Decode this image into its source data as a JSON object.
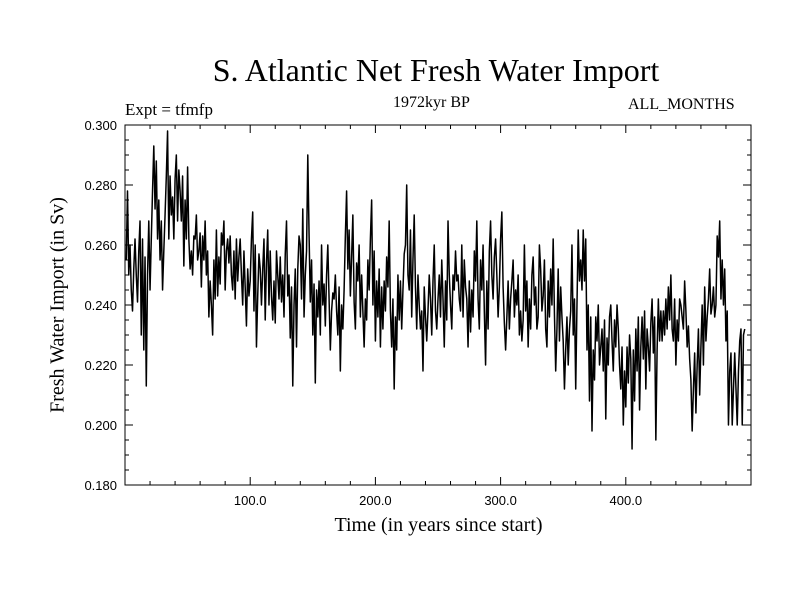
{
  "chart_data": {
    "type": "line",
    "title": "S. Atlantic Net Fresh Water Import",
    "subtitle": "1972kyr BP",
    "experiment": "Expt = tfmfp",
    "season": "ALL_MONTHS",
    "xlabel": "Time (in years since start)",
    "ylabel": "Fresh Water Import (in Sv)",
    "xlim": [
      0,
      500
    ],
    "ylim": [
      0.18,
      0.3
    ],
    "xticks": [
      100,
      200,
      300,
      400
    ],
    "xtick_labels": [
      "100.0",
      "200.0",
      "300.0",
      "400.0"
    ],
    "yticks": [
      0.18,
      0.2,
      0.22,
      0.24,
      0.26,
      0.28,
      0.3
    ],
    "ytick_labels": [
      "0.180",
      "0.200",
      "0.220",
      "0.240",
      "0.260",
      "0.280",
      "0.300"
    ],
    "series": [
      {
        "name": "S. Atlantic Net Fresh Water Import",
        "x_start": 1,
        "x_step": 1,
        "values": [
          0.255,
          0.278,
          0.25,
          0.26,
          0.245,
          0.238,
          0.252,
          0.262,
          0.25,
          0.241,
          0.258,
          0.268,
          0.23,
          0.262,
          0.225,
          0.256,
          0.213,
          0.25,
          0.268,
          0.245,
          0.262,
          0.278,
          0.293,
          0.272,
          0.288,
          0.262,
          0.275,
          0.255,
          0.268,
          0.245,
          0.258,
          0.27,
          0.283,
          0.298,
          0.262,
          0.283,
          0.27,
          0.276,
          0.262,
          0.282,
          0.29,
          0.268,
          0.285,
          0.278,
          0.268,
          0.283,
          0.253,
          0.275,
          0.262,
          0.286,
          0.262,
          0.252,
          0.258,
          0.25,
          0.263,
          0.262,
          0.27,
          0.255,
          0.258,
          0.264,
          0.246,
          0.263,
          0.255,
          0.268,
          0.25,
          0.258,
          0.236,
          0.248,
          0.24,
          0.23,
          0.255,
          0.242,
          0.265,
          0.243,
          0.256,
          0.247,
          0.264,
          0.26,
          0.268,
          0.245,
          0.258,
          0.262,
          0.254,
          0.263,
          0.25,
          0.245,
          0.258,
          0.242,
          0.262,
          0.248,
          0.256,
          0.262,
          0.25,
          0.24,
          0.258,
          0.246,
          0.233,
          0.252,
          0.243,
          0.248,
          0.262,
          0.271,
          0.238,
          0.26,
          0.226,
          0.243,
          0.257,
          0.252,
          0.24,
          0.252,
          0.262,
          0.235,
          0.254,
          0.265,
          0.24,
          0.258,
          0.243,
          0.235,
          0.248,
          0.234,
          0.258,
          0.25,
          0.242,
          0.256,
          0.241,
          0.25,
          0.236,
          0.257,
          0.268,
          0.243,
          0.25,
          0.229,
          0.246,
          0.213,
          0.24,
          0.252,
          0.226,
          0.252,
          0.263,
          0.26,
          0.242,
          0.272,
          0.236,
          0.25,
          0.258,
          0.29,
          0.264,
          0.241,
          0.255,
          0.23,
          0.247,
          0.214,
          0.245,
          0.236,
          0.248,
          0.23,
          0.26,
          0.24,
          0.247,
          0.233,
          0.25,
          0.26,
          0.242,
          0.225,
          0.238,
          0.244,
          0.242,
          0.25,
          0.238,
          0.23,
          0.246,
          0.218,
          0.24,
          0.232,
          0.245,
          0.263,
          0.278,
          0.252,
          0.265,
          0.243,
          0.256,
          0.27,
          0.241,
          0.232,
          0.254,
          0.248,
          0.26,
          0.236,
          0.25,
          0.238,
          0.226,
          0.242,
          0.235,
          0.255,
          0.245,
          0.262,
          0.275,
          0.24,
          0.258,
          0.228,
          0.248,
          0.236,
          0.252,
          0.226,
          0.246,
          0.232,
          0.248,
          0.238,
          0.256,
          0.246,
          0.268,
          0.238,
          0.226,
          0.242,
          0.212,
          0.236,
          0.225,
          0.25,
          0.235,
          0.248,
          0.232,
          0.245,
          0.257,
          0.26,
          0.28,
          0.25,
          0.245,
          0.265,
          0.236,
          0.255,
          0.27,
          0.246,
          0.232,
          0.25,
          0.24,
          0.232,
          0.238,
          0.218,
          0.246,
          0.236,
          0.228,
          0.238,
          0.25,
          0.242,
          0.23,
          0.248,
          0.26,
          0.238,
          0.232,
          0.242,
          0.25,
          0.236,
          0.255,
          0.242,
          0.226,
          0.248,
          0.235,
          0.268,
          0.25,
          0.24,
          0.232,
          0.25,
          0.245,
          0.258,
          0.248,
          0.25,
          0.242,
          0.238,
          0.26,
          0.236,
          0.255,
          0.246,
          0.242,
          0.226,
          0.248,
          0.231,
          0.245,
          0.236,
          0.258,
          0.248,
          0.268,
          0.242,
          0.232,
          0.255,
          0.245,
          0.26,
          0.238,
          0.22,
          0.248,
          0.232,
          0.258,
          0.268,
          0.25,
          0.242,
          0.256,
          0.262,
          0.25,
          0.236,
          0.246,
          0.262,
          0.271,
          0.246,
          0.234,
          0.225,
          0.236,
          0.248,
          0.232,
          0.242,
          0.248,
          0.255,
          0.236,
          0.245,
          0.24,
          0.25,
          0.23,
          0.238,
          0.228,
          0.235,
          0.26,
          0.238,
          0.248,
          0.226,
          0.242,
          0.232,
          0.25,
          0.256,
          0.24,
          0.246,
          0.232,
          0.236,
          0.26,
          0.252,
          0.238,
          0.243,
          0.255,
          0.232,
          0.226,
          0.248,
          0.236,
          0.252,
          0.24,
          0.262,
          0.237,
          0.218,
          0.232,
          0.252,
          0.228,
          0.246,
          0.236,
          0.228,
          0.212,
          0.225,
          0.236,
          0.22,
          0.232,
          0.238,
          0.26,
          0.23,
          0.242,
          0.212,
          0.24,
          0.265,
          0.248,
          0.255,
          0.245,
          0.265,
          0.248,
          0.262,
          0.225,
          0.24,
          0.208,
          0.236,
          0.198,
          0.225,
          0.215,
          0.236,
          0.228,
          0.24,
          0.22,
          0.226,
          0.232,
          0.218,
          0.235,
          0.202,
          0.229,
          0.22,
          0.236,
          0.24,
          0.228,
          0.218,
          0.235,
          0.226,
          0.24,
          0.232,
          0.22,
          0.212,
          0.226,
          0.2,
          0.218,
          0.206,
          0.226,
          0.214,
          0.23,
          0.222,
          0.192,
          0.225,
          0.208,
          0.232,
          0.218,
          0.236,
          0.205,
          0.226,
          0.236,
          0.222,
          0.238,
          0.212,
          0.232,
          0.226,
          0.218,
          0.234,
          0.242,
          0.224,
          0.236,
          0.195,
          0.225,
          0.242,
          0.228,
          0.238,
          0.228,
          0.238,
          0.23,
          0.242,
          0.232,
          0.246,
          0.235,
          0.25,
          0.232,
          0.228,
          0.242,
          0.22,
          0.235,
          0.228,
          0.242,
          0.24,
          0.236,
          0.232,
          0.248,
          0.238,
          0.226,
          0.233,
          0.222,
          0.215,
          0.198,
          0.212,
          0.224,
          0.204,
          0.22,
          0.232,
          0.21,
          0.226,
          0.24,
          0.22,
          0.246,
          0.228,
          0.236,
          0.242,
          0.252,
          0.237,
          0.24,
          0.246,
          0.236,
          0.24,
          0.263,
          0.256,
          0.268,
          0.242,
          0.255,
          0.24,
          0.252,
          0.228,
          0.238,
          0.2,
          0.218,
          0.224,
          0.2,
          0.212,
          0.224,
          0.212,
          0.2,
          0.218,
          0.228,
          0.232,
          0.2,
          0.23,
          0.232
        ]
      }
    ]
  }
}
